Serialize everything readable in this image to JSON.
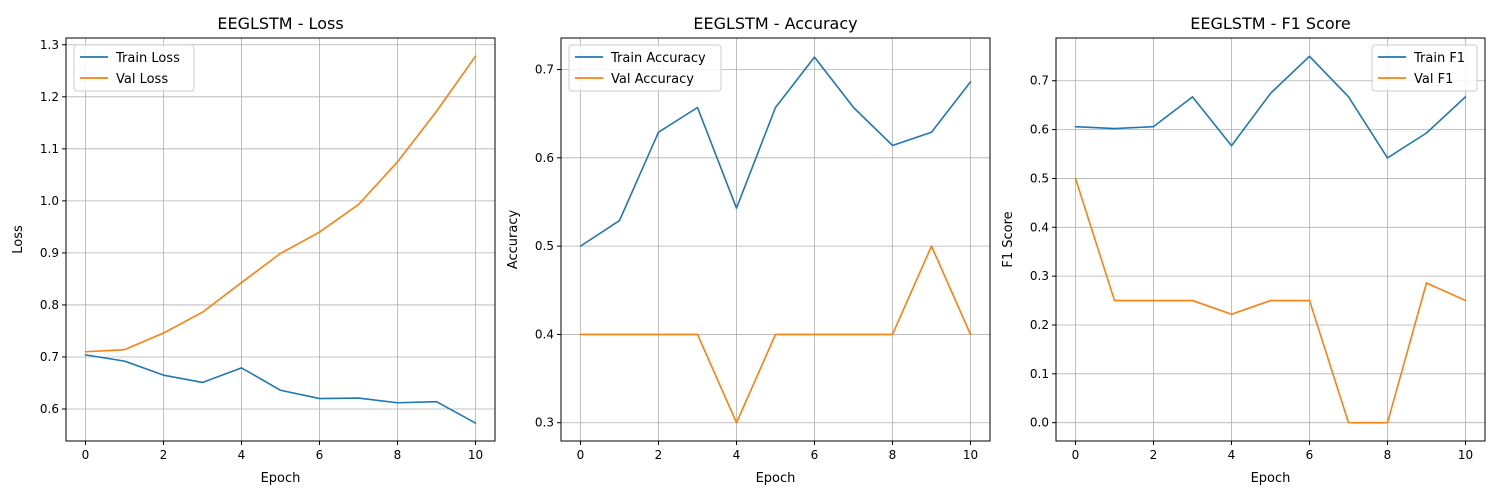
{
  "chart_data": [
    {
      "type": "line",
      "title": "EEGLSTM - Loss",
      "xlabel": "Epoch",
      "ylabel": "Loss",
      "x": [
        0,
        1,
        2,
        3,
        4,
        5,
        6,
        7,
        8,
        9,
        10
      ],
      "xlim": [
        -0.5,
        10.5
      ],
      "ylim": [
        0.5385,
        1.313
      ],
      "xticks": [
        0,
        2,
        4,
        6,
        8,
        10
      ],
      "yticks": [
        0.6,
        0.7,
        0.8,
        0.9,
        1.0,
        1.1,
        1.2,
        1.3
      ],
      "ytick_labels": [
        "0.6",
        "0.7",
        "0.8",
        "0.9",
        "1.0",
        "1.1",
        "1.2",
        "1.3"
      ],
      "grid": true,
      "legend_position": "upper-left",
      "series": [
        {
          "name": "Train Loss",
          "color": "#1f77b4",
          "values": [
            0.704,
            0.692,
            0.665,
            0.651,
            0.679,
            0.636,
            0.62,
            0.621,
            0.612,
            0.614,
            0.573
          ]
        },
        {
          "name": "Val Loss",
          "color": "#ff7f0e",
          "values": [
            0.71,
            0.714,
            0.746,
            0.786,
            0.843,
            0.899,
            0.94,
            0.993,
            1.075,
            1.172,
            1.278
          ]
        }
      ]
    },
    {
      "type": "line",
      "title": "EEGLSTM - Accuracy",
      "xlabel": "Epoch",
      "ylabel": "Accuracy",
      "x": [
        0,
        1,
        2,
        3,
        4,
        5,
        6,
        7,
        8,
        9,
        10
      ],
      "xlim": [
        -0.5,
        10.5
      ],
      "ylim": [
        0.2793,
        0.7357
      ],
      "xticks": [
        0,
        2,
        4,
        6,
        8,
        10
      ],
      "yticks": [
        0.3,
        0.4,
        0.5,
        0.6,
        0.7
      ],
      "ytick_labels": [
        "0.3",
        "0.4",
        "0.5",
        "0.6",
        "0.7"
      ],
      "grid": true,
      "legend_position": "upper-left",
      "series": [
        {
          "name": "Train Accuracy",
          "color": "#1f77b4",
          "values": [
            0.5,
            0.529,
            0.629,
            0.657,
            0.543,
            0.657,
            0.714,
            0.657,
            0.614,
            0.629,
            0.686
          ]
        },
        {
          "name": "Val Accuracy",
          "color": "#ff7f0e",
          "values": [
            0.4,
            0.4,
            0.4,
            0.4,
            0.3,
            0.4,
            0.4,
            0.4,
            0.4,
            0.5,
            0.4
          ]
        }
      ]
    },
    {
      "type": "line",
      "title": "EEGLSTM - F1 Score",
      "xlabel": "Epoch",
      "ylabel": "F1 Score",
      "x": [
        0,
        1,
        2,
        3,
        4,
        5,
        6,
        7,
        8,
        9,
        10
      ],
      "xlim": [
        -0.5,
        10.5
      ],
      "ylim": [
        -0.0375,
        0.7875
      ],
      "xticks": [
        0,
        2,
        4,
        6,
        8,
        10
      ],
      "yticks": [
        0.0,
        0.1,
        0.2,
        0.3,
        0.4,
        0.5,
        0.6,
        0.7
      ],
      "ytick_labels": [
        "0.0",
        "0.1",
        "0.2",
        "0.3",
        "0.4",
        "0.5",
        "0.6",
        "0.7"
      ],
      "grid": true,
      "legend_position": "upper-right",
      "series": [
        {
          "name": "Train F1",
          "color": "#1f77b4",
          "values": [
            0.606,
            0.602,
            0.606,
            0.667,
            0.567,
            0.674,
            0.75,
            0.667,
            0.542,
            0.593,
            0.667
          ]
        },
        {
          "name": "Val F1",
          "color": "#ff7f0e",
          "values": [
            0.5,
            0.25,
            0.25,
            0.25,
            0.222,
            0.25,
            0.25,
            0.0,
            0.0,
            0.286,
            0.25
          ]
        }
      ]
    }
  ]
}
